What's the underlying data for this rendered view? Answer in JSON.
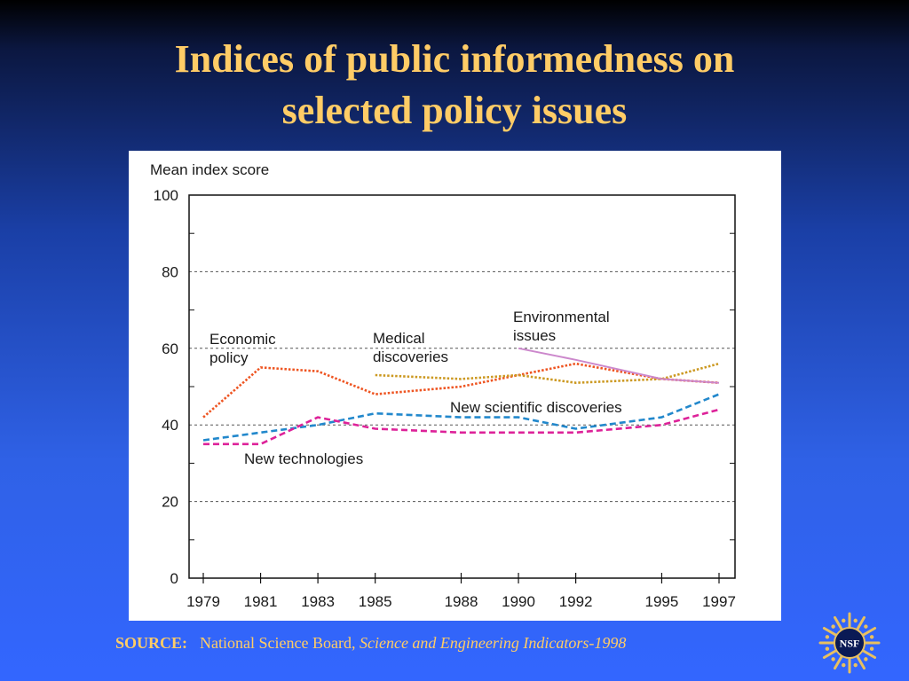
{
  "slide": {
    "title_line1": "Indices of public informedness on",
    "title_line2": "selected policy issues"
  },
  "source": {
    "label": "SOURCE:",
    "org": "National Science Board,",
    "title": "Science and Engineering Indicators-1998"
  },
  "logo": {
    "text": "NSF",
    "icon": "nsf-logo-icon"
  },
  "colors": {
    "title": "#ffcc66",
    "economic": "#ee5522",
    "medical": "#cc9922",
    "environmental": "#cc88cc",
    "scientific": "#2288cc",
    "technologies": "#dd2299"
  },
  "chart_data": {
    "type": "line",
    "ylabel": "Mean index score",
    "xlabel": "",
    "ylim": [
      0,
      100
    ],
    "yticks": [
      0,
      20,
      40,
      60,
      80,
      100
    ],
    "xlim": [
      1979,
      1997
    ],
    "xticks": [
      1979,
      1981,
      1983,
      1985,
      1988,
      1990,
      1992,
      1995,
      1997
    ],
    "gridlines_y": [
      20,
      40,
      60,
      80
    ],
    "grid": "dashed horizontal",
    "series": [
      {
        "key": "economic",
        "annotation_lines": [
          "Economic",
          "policy"
        ],
        "color": "#ee5522",
        "style": "dotted",
        "points": [
          [
            1979,
            42
          ],
          [
            1981,
            55
          ],
          [
            1983,
            54
          ],
          [
            1985,
            48
          ],
          [
            1988,
            50
          ],
          [
            1990,
            53
          ],
          [
            1992,
            56
          ],
          [
            1995,
            52
          ],
          [
            1997,
            51
          ]
        ]
      },
      {
        "key": "medical",
        "annotation_lines": [
          "Medical",
          "discoveries"
        ],
        "color": "#cc9922",
        "style": "dotted",
        "points": [
          [
            1985,
            53
          ],
          [
            1988,
            52
          ],
          [
            1990,
            53
          ],
          [
            1992,
            51
          ],
          [
            1995,
            52
          ],
          [
            1997,
            56
          ]
        ]
      },
      {
        "key": "environmental",
        "annotation_lines": [
          "Environmental",
          "issues"
        ],
        "color": "#cc88cc",
        "style": "solid",
        "points": [
          [
            1990,
            60
          ],
          [
            1992,
            57
          ],
          [
            1995,
            52
          ],
          [
            1997,
            51
          ]
        ]
      },
      {
        "key": "scientific",
        "annotation_lines": [
          "New scientific discoveries"
        ],
        "color": "#2288cc",
        "style": "dashed",
        "points": [
          [
            1979,
            36
          ],
          [
            1981,
            38
          ],
          [
            1983,
            40
          ],
          [
            1985,
            43
          ],
          [
            1988,
            42
          ],
          [
            1990,
            42
          ],
          [
            1992,
            39
          ],
          [
            1995,
            42
          ],
          [
            1997,
            48
          ]
        ]
      },
      {
        "key": "technologies",
        "annotation_lines": [
          "New technologies"
        ],
        "color": "#dd2299",
        "style": "dashed",
        "points": [
          [
            1979,
            35
          ],
          [
            1981,
            35
          ],
          [
            1983,
            42
          ],
          [
            1985,
            39
          ],
          [
            1988,
            38
          ],
          [
            1990,
            38
          ],
          [
            1992,
            38
          ],
          [
            1995,
            40
          ],
          [
            1997,
            44
          ]
        ]
      }
    ]
  }
}
